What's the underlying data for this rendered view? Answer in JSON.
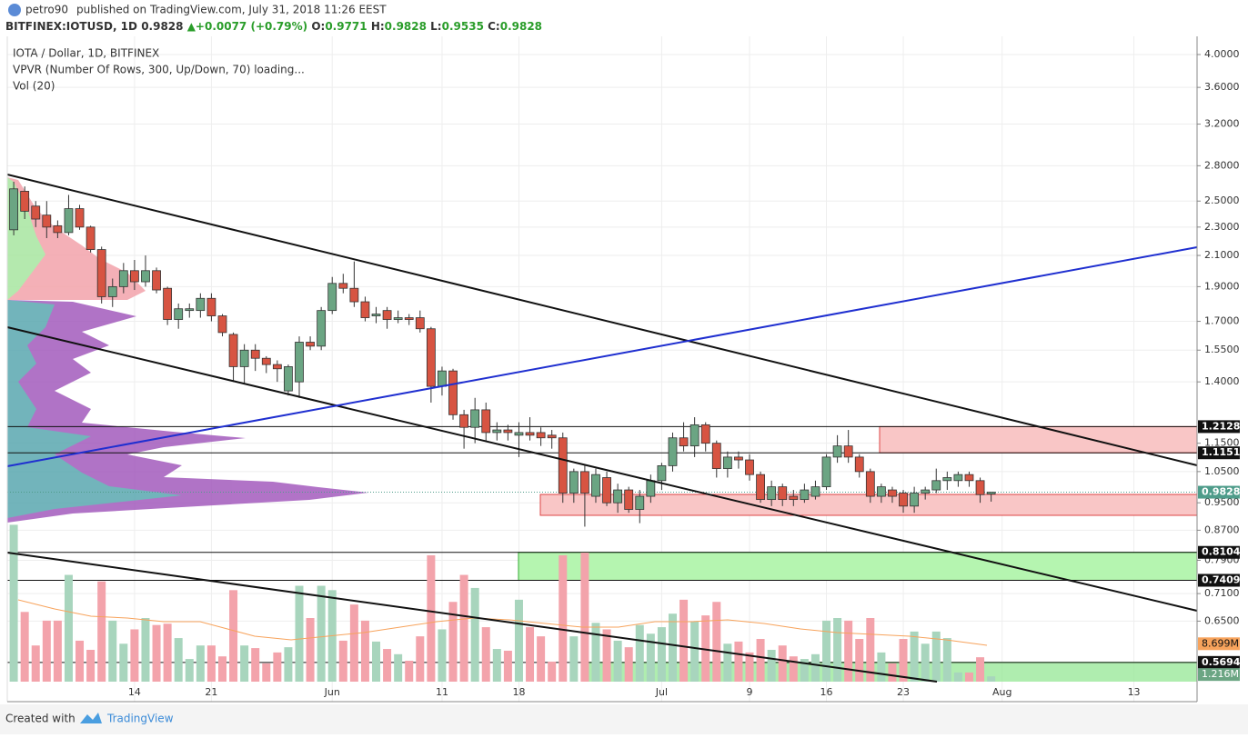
{
  "header": {
    "publisher": "petro90",
    "published": "published on TradingView.com, July 31, 2018 11:26 EEST"
  },
  "chart_data": {
    "type": "candlestick",
    "symbol": "BITFINEX:IOTUSD, 1D",
    "last": 0.9828,
    "change": "+0.0077 (+0.79%)",
    "ohlc": [
      {
        "label": "O:",
        "value": 0.9771
      },
      {
        "label": "H:",
        "value": 0.9828
      },
      {
        "label": "L:",
        "value": 0.9535
      },
      {
        "label": "C:",
        "value": 0.9828
      }
    ],
    "legend": [
      "IOTA / Dollar, 1D, BITFINEX",
      "VPVR (Number Of Rows, 300, Up/Down, 70) loading...",
      "Vol (20)"
    ],
    "open": [
      2.28,
      2.58,
      2.46,
      2.39,
      2.31,
      2.26,
      2.44,
      2.3,
      2.14,
      1.84,
      1.9,
      2.0,
      1.93,
      2.0,
      1.89,
      1.71,
      1.76,
      1.76,
      1.83,
      1.73,
      1.63,
      1.47,
      1.55,
      1.51,
      1.48,
      1.36,
      1.4,
      1.59,
      1.57,
      1.76,
      1.92,
      1.89,
      1.81,
      1.73,
      1.76,
      1.71,
      1.72,
      1.72,
      1.66,
      1.38,
      1.45,
      1.26,
      1.21,
      1.28,
      1.19,
      1.2,
      1.18,
      1.19,
      1.19,
      1.18,
      1.17,
      0.98,
      1.05,
      0.97,
      1.03,
      0.95,
      0.99,
      0.93,
      0.97,
      1.02,
      1.07,
      1.17,
      1.14,
      1.22,
      1.15,
      1.06,
      1.1,
      1.09,
      1.04,
      0.96,
      1.0,
      0.97,
      0.96,
      0.97,
      1.0,
      1.1,
      1.14,
      1.1,
      1.05,
      0.97,
      0.99,
      0.98,
      0.94,
      0.98,
      0.99,
      1.02,
      1.02,
      1.04,
      1.02,
      0.9771
    ],
    "high": [
      2.66,
      2.62,
      2.5,
      2.5,
      2.35,
      2.55,
      2.47,
      2.31,
      2.16,
      1.95,
      2.05,
      2.07,
      2.1,
      2.02,
      1.9,
      1.8,
      1.8,
      1.86,
      1.86,
      1.74,
      1.64,
      1.58,
      1.58,
      1.52,
      1.5,
      1.48,
      1.62,
      1.62,
      1.78,
      1.96,
      1.98,
      2.06,
      1.84,
      1.78,
      1.78,
      1.76,
      1.74,
      1.76,
      1.67,
      1.47,
      1.46,
      1.28,
      1.33,
      1.31,
      1.23,
      1.22,
      1.23,
      1.25,
      1.21,
      1.2,
      1.19,
      1.06,
      1.07,
      1.06,
      1.05,
      1.01,
      1.0,
      0.99,
      1.04,
      1.08,
      1.19,
      1.23,
      1.25,
      1.23,
      1.16,
      1.12,
      1.12,
      1.11,
      1.05,
      1.02,
      1.01,
      0.99,
      1.01,
      1.02,
      1.11,
      1.18,
      1.2,
      1.11,
      1.06,
      1.01,
      1.0,
      0.99,
      1.0,
      1.0,
      1.06,
      1.05,
      1.05,
      1.05,
      1.03,
      0.9828
    ],
    "low": [
      2.24,
      2.36,
      2.3,
      2.22,
      2.22,
      2.24,
      2.28,
      2.12,
      1.8,
      1.78,
      1.86,
      1.88,
      1.9,
      1.86,
      1.68,
      1.66,
      1.72,
      1.72,
      1.7,
      1.62,
      1.4,
      1.39,
      1.45,
      1.44,
      1.4,
      1.34,
      1.33,
      1.55,
      1.55,
      1.74,
      1.86,
      1.78,
      1.7,
      1.69,
      1.66,
      1.69,
      1.68,
      1.64,
      1.31,
      1.34,
      1.24,
      1.13,
      1.15,
      1.16,
      1.16,
      1.16,
      1.1,
      1.16,
      1.14,
      1.13,
      0.95,
      0.95,
      0.88,
      0.95,
      0.94,
      0.92,
      0.92,
      0.89,
      0.95,
      0.99,
      1.05,
      1.12,
      1.1,
      1.12,
      1.03,
      1.03,
      1.06,
      1.02,
      0.95,
      0.94,
      0.94,
      0.94,
      0.95,
      0.96,
      0.99,
      1.08,
      1.08,
      1.03,
      0.95,
      0.95,
      0.95,
      0.92,
      0.92,
      0.96,
      0.98,
      0.99,
      1.0,
      1.0,
      0.95,
      0.9535
    ],
    "close": [
      2.6,
      2.42,
      2.36,
      2.3,
      2.26,
      2.44,
      2.3,
      2.14,
      1.84,
      1.9,
      2.0,
      1.93,
      2.0,
      1.88,
      1.71,
      1.77,
      1.77,
      1.83,
      1.73,
      1.64,
      1.47,
      1.55,
      1.51,
      1.48,
      1.46,
      1.47,
      1.59,
      1.57,
      1.76,
      1.92,
      1.89,
      1.81,
      1.72,
      1.74,
      1.71,
      1.72,
      1.71,
      1.66,
      1.38,
      1.45,
      1.26,
      1.21,
      1.28,
      1.19,
      1.2,
      1.19,
      1.19,
      1.18,
      1.17,
      1.17,
      0.98,
      1.05,
      0.98,
      1.04,
      0.95,
      0.99,
      0.93,
      0.97,
      1.02,
      1.07,
      1.17,
      1.14,
      1.22,
      1.15,
      1.06,
      1.1,
      1.09,
      1.04,
      0.96,
      1.0,
      0.96,
      0.96,
      0.99,
      1.0,
      1.1,
      1.14,
      1.1,
      1.05,
      0.97,
      1.0,
      0.97,
      0.94,
      0.98,
      0.99,
      1.02,
      1.03,
      1.04,
      1.02,
      0.9751,
      0.9828
    ],
    "volume": [
      36,
      16,
      8.3,
      14,
      14,
      24.5,
      9.4,
      7.3,
      23,
      14,
      8.7,
      12,
      14.6,
      13,
      13.3,
      10,
      5.2,
      8.3,
      8.3,
      5.8,
      21,
      8.3,
      7.7,
      4.2,
      6.7,
      7.9,
      22,
      14.6,
      22,
      21,
      9.4,
      17.7,
      14,
      9.2,
      7.5,
      6.3,
      4.8,
      10.4,
      29,
      12,
      18.3,
      24.5,
      21.5,
      12.5,
      7.5,
      7.1,
      18.8,
      12.5,
      10.4,
      4.6,
      29,
      10.4,
      29.6,
      13.5,
      12,
      9.4,
      7.9,
      13,
      11,
      12.5,
      15.6,
      18.8,
      13.8,
      15.2,
      18.3,
      8.7,
      9.2,
      6.7,
      9.8,
      7.3,
      8.3,
      5.8,
      5.2,
      6.3,
      14,
      14.6,
      14,
      9.8,
      14.6,
      6.7,
      4.2,
      9.8,
      11.5,
      8.7,
      11.5,
      10,
      2.1,
      2.1,
      5.6,
      1.216
    ],
    "vlim": [
      0,
      36.5
    ],
    "log_scale": true,
    "ylim": [
      0.505,
      4.24
    ],
    "yticks": [
      {
        "value": 4,
        "label": "4.0000"
      },
      {
        "value": 3.6,
        "label": "3.6000"
      },
      {
        "value": 3.2,
        "label": "3.2000"
      },
      {
        "value": 2.8,
        "label": "2.8000"
      },
      {
        "value": 2.5,
        "label": "2.5000"
      },
      {
        "value": 2.3,
        "label": "2.3000"
      },
      {
        "value": 2.1,
        "label": "2.1000"
      },
      {
        "value": 1.9,
        "label": "1.9000"
      },
      {
        "value": 1.7,
        "label": "1.7000"
      },
      {
        "value": 1.55,
        "label": "1.5500"
      },
      {
        "value": 1.4,
        "label": "1.4000"
      },
      {
        "value": 1.15,
        "label": "1.1500"
      },
      {
        "value": 1.05,
        "label": "1.0500"
      },
      {
        "value": 0.95,
        "label": "0.9500"
      },
      {
        "value": 0.87,
        "label": "0.8700"
      },
      {
        "value": 0.79,
        "label": "0.7900"
      },
      {
        "value": 0.71,
        "label": "0.7100"
      },
      {
        "value": 0.65,
        "label": "0.6500"
      }
    ],
    "xlim": [
      -1.25,
      107.75
    ],
    "xticks": [
      {
        "value": 11,
        "label": "14"
      },
      {
        "value": 18,
        "label": "21"
      },
      {
        "value": 29,
        "label": "Jun"
      },
      {
        "value": 39,
        "label": "11"
      },
      {
        "value": 46,
        "label": "18"
      },
      {
        "value": 59,
        "label": "Jul"
      },
      {
        "value": 67,
        "label": "9"
      },
      {
        "value": 74,
        "label": "16"
      },
      {
        "value": 81,
        "label": "23"
      },
      {
        "value": 90,
        "label": "Aug"
      },
      {
        "value": 102,
        "label": "13"
      }
    ],
    "grid": true,
    "price_lines": [
      {
        "value": 1.2128,
        "label": "1.2128"
      },
      {
        "value": 1.1151,
        "label": "1.1151"
      },
      {
        "value": 0.8104,
        "label": "0.8104"
      },
      {
        "value": 0.7409,
        "label": "0.7409"
      },
      {
        "value": 0.5694,
        "label": "0.5694"
      }
    ],
    "last_price": {
      "value": 0.9828,
      "label": "0.9828"
    },
    "volume_ma": {
      "value": 8.699,
      "label": "8.699M"
    },
    "last_volume": {
      "value": 1.216,
      "label": "1.216M"
    },
    "colors": {
      "up": "#6ba583",
      "down": "#d75442",
      "up_volume": "#a8d5bd",
      "down_volume": "#f3a3ab"
    }
  },
  "footer": {
    "created": "Created with",
    "brand": "TradingView"
  }
}
